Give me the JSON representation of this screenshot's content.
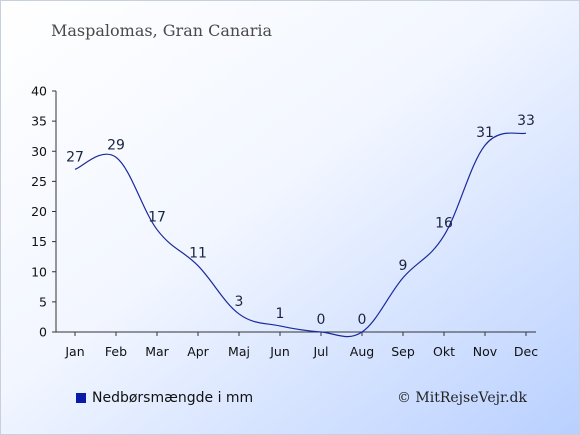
{
  "chart_data": {
    "type": "line",
    "title": "Maspalomas, Gran Canaria",
    "categories": [
      "Jan",
      "Feb",
      "Mar",
      "Apr",
      "Maj",
      "Jun",
      "Jul",
      "Aug",
      "Sep",
      "Okt",
      "Nov",
      "Dec"
    ],
    "series": [
      {
        "name": "Nedbørsmængde i mm",
        "values": [
          27,
          29,
          17,
          11,
          3,
          1,
          0,
          0,
          9,
          16,
          31,
          33
        ]
      }
    ],
    "ylim": [
      0,
      40
    ],
    "yticks": [
      0,
      5,
      10,
      15,
      20,
      25,
      30,
      35,
      40
    ],
    "xlabel": "",
    "ylabel": "",
    "grid": false,
    "legend_position": "bottom-left",
    "line_color": "#1a2a9e",
    "legend_color": "#0a1aa8"
  },
  "credit": "© MitRejseVejr.dk"
}
